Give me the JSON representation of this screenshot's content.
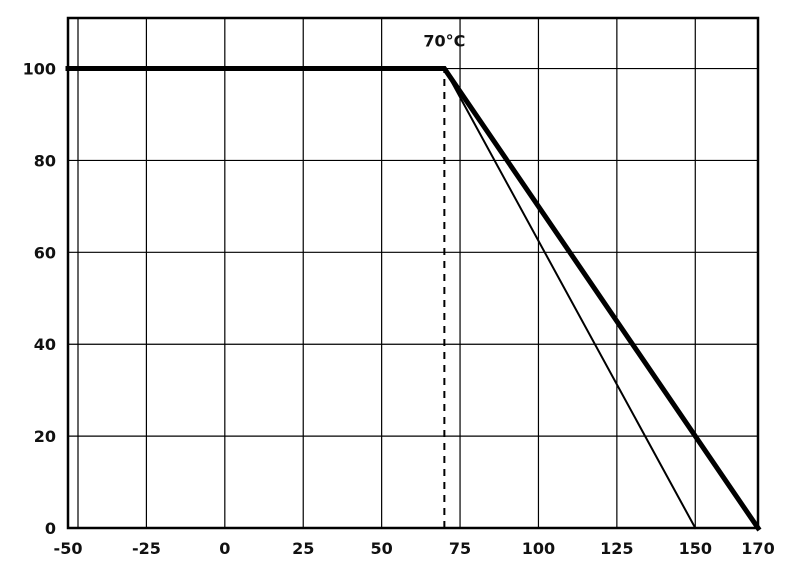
{
  "chart_data": {
    "type": "line",
    "title": "",
    "xlabel": "",
    "ylabel": "",
    "xlim": [
      -50,
      170
    ],
    "ylim": [
      0,
      111
    ],
    "x_ticks": [
      -50,
      -25,
      0,
      25,
      50,
      75,
      100,
      125,
      150,
      170
    ],
    "y_ticks": [
      0,
      20,
      40,
      60,
      80,
      100
    ],
    "grid": true,
    "legend": "none",
    "line_color": "#000000",
    "annotation": {
      "label": "70°C",
      "x": 70,
      "dashed_line_x": 70,
      "dashed_line_y_top": 100
    },
    "series": [
      {
        "name": "derating-curve-thick",
        "points": [
          [
            -50,
            100
          ],
          [
            70,
            100
          ],
          [
            170,
            0
          ]
        ],
        "stroke_width": 5
      },
      {
        "name": "derating-curve-thin",
        "points": [
          [
            70,
            100
          ],
          [
            150,
            0
          ]
        ],
        "stroke_width": 2
      }
    ]
  }
}
